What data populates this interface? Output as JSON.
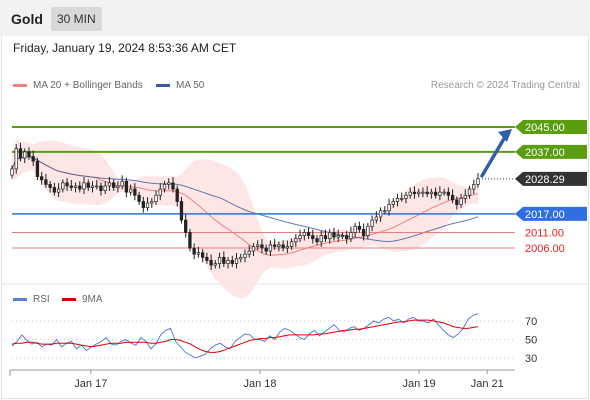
{
  "header": {
    "symbol": "Gold",
    "interval": "30 MIN"
  },
  "datetime": "Friday, January 19, 2024 8:53:36 AM CET",
  "legend": {
    "ma20": "MA 20 + Bollinger Bands",
    "ma50": "MA 50",
    "credit": "Research © 2024 Trading Central"
  },
  "rsi_legend": {
    "rsi": "RSI",
    "ma9": "9MA"
  },
  "colors": {
    "resistance": "#5a9e0f",
    "support_main": "#2f6fe0",
    "support_lines": "#e58080",
    "support_labels": "#e02020",
    "current": "#333333",
    "ma20": "#f08080",
    "ma50": "#3c5a9a",
    "bollinger_fill": "#fde0e0",
    "candle_up": "#ffffff",
    "candle_down": "#222222",
    "arrow": "#2f5fa8",
    "rsi": "#5b7fd6",
    "rsi_ma": "#e00000"
  },
  "chart_data": {
    "type": "candlestick",
    "price_levels": [
      {
        "label": "2045.00",
        "value": 2045.0,
        "kind": "resistance"
      },
      {
        "label": "2037.00",
        "value": 2037.0,
        "kind": "resistance"
      },
      {
        "label": "2028.29",
        "value": 2028.29,
        "kind": "current"
      },
      {
        "label": "2017.00",
        "value": 2017.0,
        "kind": "support_main"
      },
      {
        "label": "2011.00",
        "value": 2011.0,
        "kind": "support"
      },
      {
        "label": "2006.00",
        "value": 2006.0,
        "kind": "support"
      }
    ],
    "x_ticks": [
      "Jan 17",
      "Jan 18",
      "Jan 19",
      "Jan 21"
    ],
    "x_tick_positions": [
      0.16,
      0.495,
      0.81,
      0.945
    ],
    "close": [
      2031.5,
      2038,
      2035,
      2037,
      2035.5,
      2034,
      2029,
      2028,
      2026.5,
      2025.5,
      2024,
      2025,
      2027,
      2026,
      2025.5,
      2026,
      2025,
      2027,
      2025.5,
      2026,
      2026,
      2024.5,
      2026,
      2027,
      2025.5,
      2026,
      2027.5,
      2024,
      2025,
      2023,
      2021,
      2019,
      2020.5,
      2021,
      2023,
      2025,
      2026.5,
      2027,
      2025,
      2021,
      2015,
      2011,
      2006,
      2004,
      2004.5,
      2003,
      2002,
      2000.5,
      2001,
      2003,
      2001,
      2002,
      2001,
      2002.5,
      2003,
      2004,
      2005,
      2006.5,
      2007,
      2006,
      2005,
      2007,
      2006.5,
      2007,
      2006,
      2006.5,
      2008,
      2009,
      2010,
      2011,
      2010,
      2009,
      2008,
      2010,
      2009,
      2011,
      2009.5,
      2010,
      2010,
      2009,
      2011,
      2013,
      2012,
      2010,
      2013,
      2015,
      2016,
      2018,
      2018,
      2020,
      2021,
      2022,
      2022,
      2023,
      2024,
      2023.5,
      2024,
      2024,
      2023.5,
      2024,
      2023,
      2024,
      2024,
      2023,
      2021.5,
      2020,
      2022,
      2023,
      2025,
      2026.5,
      2028.29
    ],
    "rsi_levels": [
      70,
      50,
      30
    ],
    "rsi": [
      43,
      48,
      55,
      49,
      45,
      47,
      42,
      45,
      44,
      50,
      42,
      46,
      48,
      40,
      44,
      38,
      42,
      45,
      48,
      52,
      45,
      44,
      48,
      50,
      46,
      44,
      52,
      48,
      40,
      45,
      55,
      60,
      62,
      48,
      42,
      36,
      33,
      30,
      32,
      34,
      40,
      44,
      46,
      42,
      40,
      48,
      52,
      56,
      55,
      50,
      50,
      48,
      54,
      50,
      58,
      62,
      60,
      56,
      52,
      50,
      56,
      60,
      54,
      58,
      62,
      66,
      60,
      58,
      62,
      64,
      60,
      62,
      66,
      70,
      68,
      72,
      74,
      70,
      72,
      68,
      72,
      74,
      70,
      70,
      68,
      72,
      66,
      60,
      55,
      52,
      56,
      62,
      72,
      76,
      78
    ],
    "rsi_ma": [
      45,
      46,
      46,
      47,
      47,
      46,
      45,
      45,
      45,
      46,
      46,
      46,
      46,
      45,
      44,
      43,
      42,
      43,
      44,
      45,
      46,
      46,
      46,
      47,
      47,
      47,
      47,
      47,
      46,
      46,
      47,
      48,
      50,
      50,
      49,
      47,
      45,
      42,
      39,
      37,
      36,
      36,
      37,
      39,
      41,
      43,
      45,
      47,
      49,
      50,
      51,
      51,
      52,
      52,
      53,
      54,
      55,
      55,
      55,
      55,
      55,
      55,
      56,
      56,
      57,
      58,
      59,
      60,
      60,
      61,
      61,
      62,
      63,
      64,
      65,
      66,
      67,
      68,
      69,
      69,
      70,
      71,
      71,
      71,
      71,
      70,
      69,
      68,
      66,
      64,
      63,
      62,
      62,
      63,
      64
    ]
  }
}
